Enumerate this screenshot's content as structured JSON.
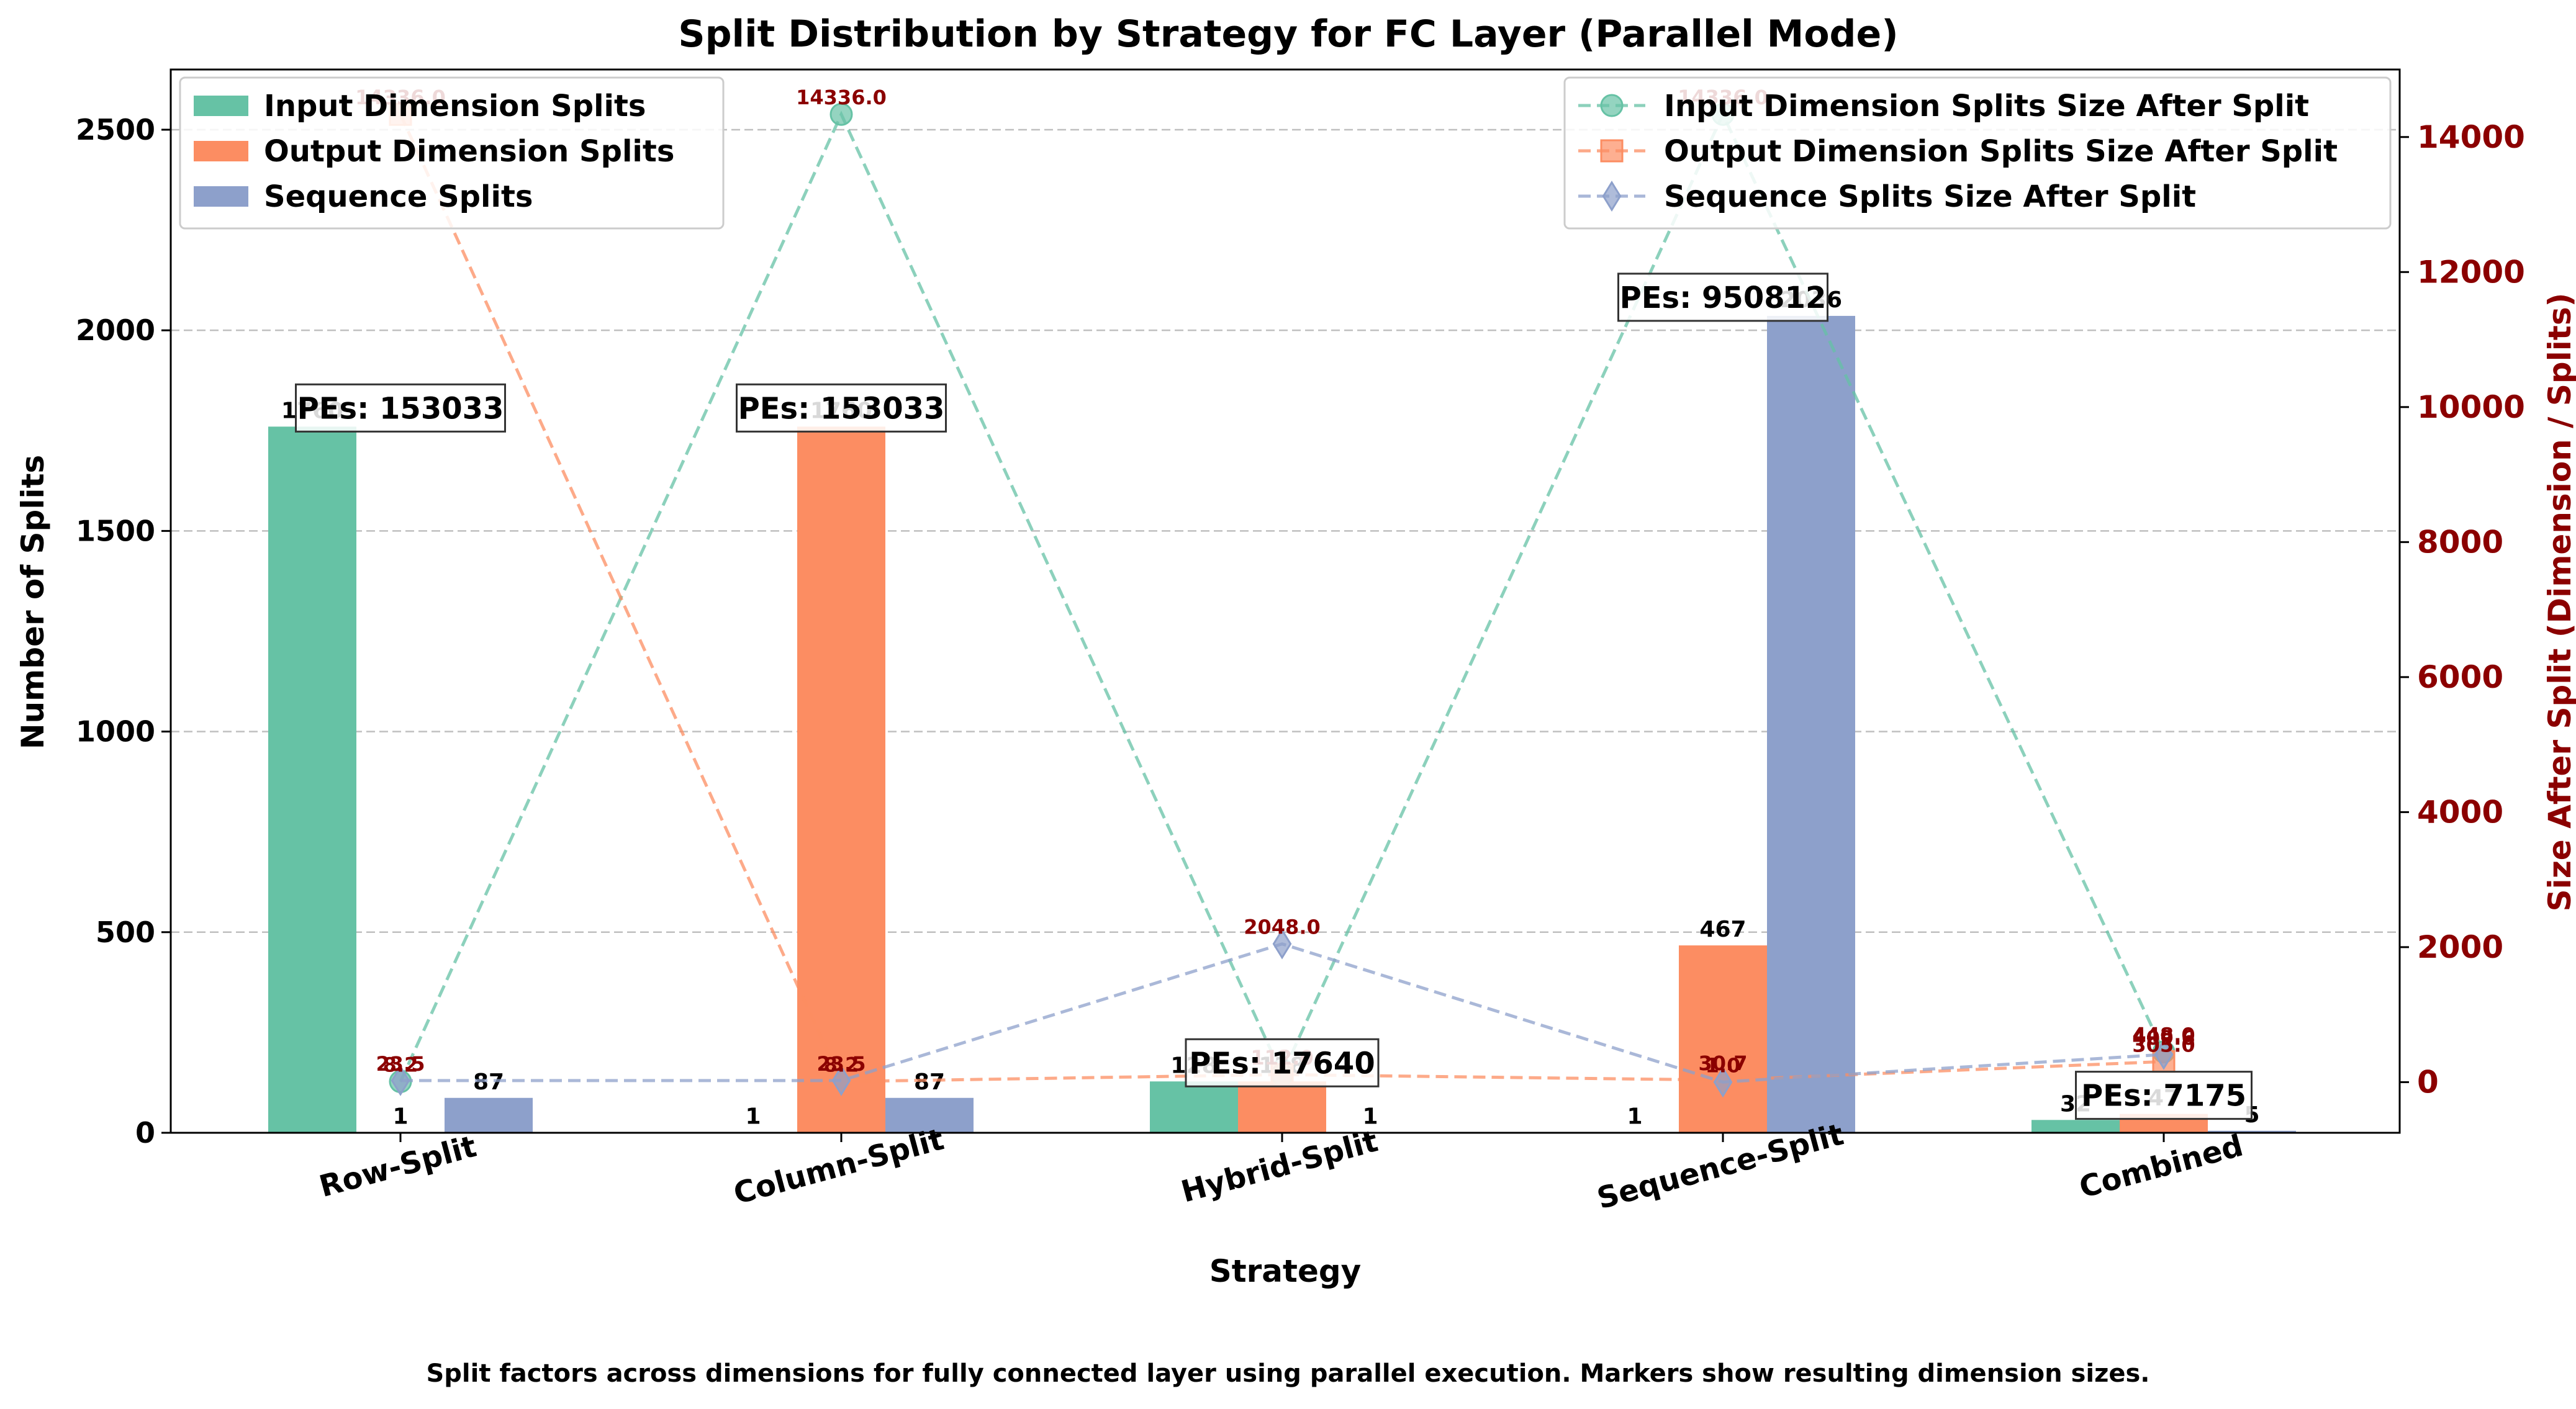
{
  "colors": {
    "input": "#66c2a5",
    "output": "#fc8d62",
    "sequence": "#8da0cb",
    "secondary_axis": "#8b0000"
  },
  "chart_data": {
    "type": "bar",
    "title": "Split Distribution by Strategy for FC Layer (Parallel Mode)",
    "xlabel": "Strategy",
    "ylabel": "Number of Splits",
    "y2label": "Size After Split (Dimension / Splits)",
    "categories": [
      "Row-Split",
      "Column-Split",
      "Hybrid-Split",
      "Sequence-Split",
      "Combined"
    ],
    "ylim": [
      0,
      2650
    ],
    "yticks": [
      "0",
      "500",
      "1000",
      "1500",
      "2000",
      "2500"
    ],
    "y2lim": [
      -750,
      15000
    ],
    "y2ticks": [
      "0",
      "2000",
      "4000",
      "6000",
      "8000",
      "10000",
      "12000",
      "14000"
    ],
    "grid": true,
    "series": [
      {
        "name": "Input Dimension Splits",
        "values": [
          1760,
          1,
          128,
          1,
          32
        ],
        "labels": [
          "1760",
          "1",
          "128",
          "1",
          "32"
        ]
      },
      {
        "name": "Output Dimension Splits",
        "values": [
          1,
          1760,
          128,
          467,
          47
        ],
        "labels": [
          "1",
          "1760",
          "128",
          "467",
          "47"
        ]
      },
      {
        "name": "Sequence Splits",
        "values": [
          87,
          87,
          1,
          2036,
          5
        ],
        "labels": [
          "87",
          "87",
          "1",
          "2036",
          "5"
        ]
      }
    ],
    "line_series": [
      {
        "name": "Input Dimension Splits Size After Split",
        "values": [
          8.2,
          14336.0,
          112.0,
          14336.0,
          448.0
        ],
        "labels": [
          "8.2",
          "14336.0",
          "112.0",
          "14336.0",
          "448.0"
        ]
      },
      {
        "name": "Output Dimension Splits Size After Split",
        "values": [
          14336.0,
          8.2,
          112.0,
          30.7,
          305.0
        ],
        "labels": [
          "14336.0",
          "8.2",
          "112.0",
          "30.7",
          "305.0"
        ]
      },
      {
        "name": "Sequence Splits Size After Split",
        "values": [
          23.5,
          23.5,
          2048.0,
          1.0,
          409.6
        ],
        "labels": [
          "23.5",
          "23.5",
          "2048.0",
          "1.0",
          "409.6"
        ]
      }
    ],
    "pe_annotations": [
      {
        "label": "PEs: 153033",
        "value": 1760
      },
      {
        "label": "PEs: 153033",
        "value": 1760
      },
      {
        "label": "PEs: 17640",
        "value": 128
      },
      {
        "label": "PEs: 950812",
        "value": 2036
      },
      {
        "label": "PEs: 7175",
        "value": 47
      }
    ],
    "legend_bars_placement": "upper-left",
    "legend_lines_placement": "upper-right"
  },
  "caption": "Split factors across dimensions for fully connected layer using parallel execution. Markers show resulting dimension sizes."
}
